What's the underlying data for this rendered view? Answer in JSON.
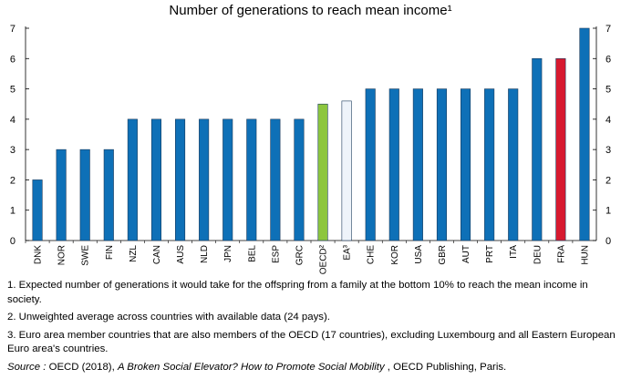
{
  "chart_data": {
    "type": "bar",
    "title": "Number of generations to reach mean income¹",
    "xlabel": "",
    "ylabel": "",
    "ylim": [
      0,
      7
    ],
    "yticks": [
      0,
      1,
      2,
      3,
      4,
      5,
      6,
      7
    ],
    "categories": [
      "DNK",
      "NOR",
      "SWE",
      "FIN",
      "NZL",
      "CAN",
      "AUS",
      "NLD",
      "JPN",
      "BEL",
      "ESP",
      "GRC",
      "OECD²",
      "EA³",
      "CHE",
      "KOR",
      "USA",
      "GBR",
      "AUT",
      "PRT",
      "ITA",
      "DEU",
      "FRA",
      "HUN"
    ],
    "values": [
      2,
      3,
      3,
      3,
      4,
      4,
      4,
      4,
      4,
      4,
      4,
      4,
      4.5,
      4.6,
      5,
      5,
      5,
      5,
      5,
      5,
      5,
      6,
      6,
      7
    ],
    "highlights": {
      "OECD²": "#8dc63f",
      "EA³": "#eef3fa",
      "FRA": "#d7192f"
    },
    "default_color": "#0e70b7",
    "grid": false
  },
  "notes": [
    "1. Expected number of generations it would take for the offspring from a family at the bottom 10% to reach the mean income in society.",
    "2. Unweighted average across countries with available data (24 pays).",
    "3. Euro area member countries that are also members of the OECD (17 countries), excluding Luxembourg and all Eastern European Euro area's countries."
  ],
  "source": {
    "label": "Source :",
    "before": "OECD (2018), ",
    "title": "A Broken Social Elevator? How to Promote Social Mobility",
    "after": " , OECD Publishing, Paris."
  }
}
